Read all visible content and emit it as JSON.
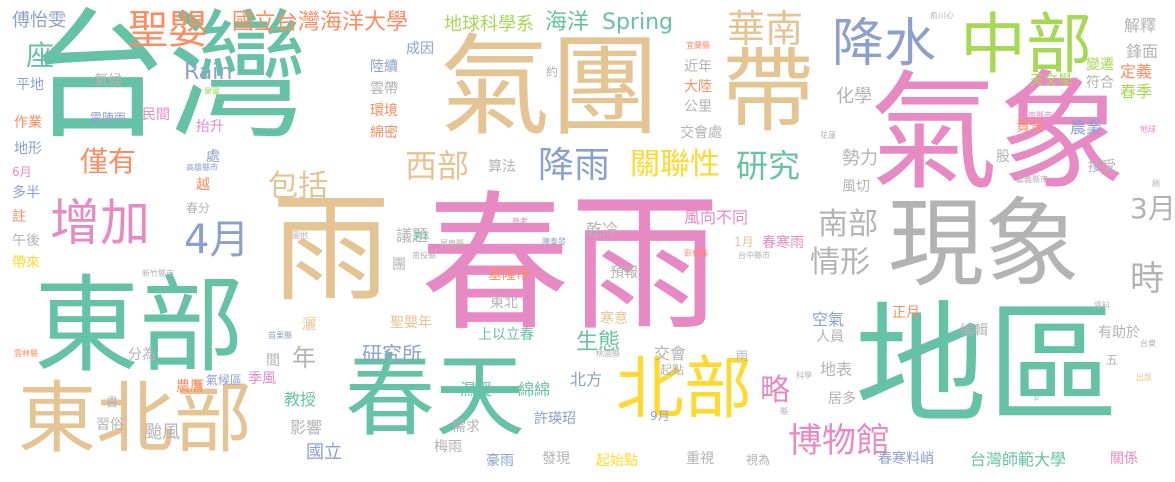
{
  "palette": {
    "green": "#66c2a5",
    "pink": "#e78ac3",
    "tan": "#e5c494",
    "blue": "#8da0cb",
    "gray": "#b3b3b3",
    "orange": "#fc8d62",
    "yellow": "#ffd92f",
    "lime": "#a6d854"
  },
  "words": [
    "台灣",
    "春雨",
    "氣團",
    "氣象",
    "地區",
    "東部",
    "雨",
    "現象",
    "春天",
    "中部",
    "東北部",
    "帶",
    "降水",
    "北部",
    "增加",
    "聖嬰",
    "華南",
    "4月",
    "博物館",
    "降雨",
    "關聯性",
    "研究",
    "情形",
    "南部",
    "3月",
    "時",
    "西部",
    "包括",
    "座",
    "僅有",
    "Rain",
    "Spring",
    "國立台灣海洋大學",
    "地球科學系",
    "海洋",
    "傅怡雯",
    "略",
    "年",
    "研究所",
    "生態",
    "天文學",
    "鋒面",
    "解釋",
    "定義",
    "春季",
    "變遷",
    "符合",
    "化學",
    "責任",
    "勢力",
    "風切",
    "農業",
    "股",
    "接受",
    "風向不同",
    "乾冷",
    "預報",
    "寒意",
    "空氣",
    "人員",
    "有助於",
    "正月",
    "編輯",
    "地表",
    "居多",
    "台灣師範大學",
    "春寒料峭",
    "關係",
    "發現",
    "重視",
    "視為",
    "起始點",
    "豪雨",
    "需求",
    "梅雨",
    "濕暖",
    "綿綿",
    "北方",
    "交會",
    "教授",
    "影響",
    "國立",
    "許瑛玿",
    "農曆",
    "颱風",
    "習俗",
    "氣候區",
    "季風",
    "聖嬰年",
    "上以立春",
    "東北",
    "基隆市",
    "議題",
    "團",
    "灑",
    "間",
    "分為",
    "平地",
    "氣候",
    "作業",
    "雷陣雨",
    "民間",
    "抬升",
    "地形",
    "多半",
    "註",
    "午後",
    "帶來",
    "春分",
    "處",
    "越",
    "高雄縣市",
    "陸續",
    "成因",
    "雲帶",
    "環境",
    "綿密",
    "算法",
    "交會處",
    "近年",
    "大陸",
    "公里",
    "約",
    "果實",
    "宜蘭縣",
    "俞川心",
    "台南縣市",
    "花蓮",
    "嘉義縣市",
    "地球",
    "刷",
    "1月",
    "春寒雨",
    "台中縣市",
    "彰化縣",
    "屏東縣",
    "南投縣",
    "陳泰發",
    "第五",
    "參考",
    "圖地",
    "新竹縣市",
    "苗栗縣",
    "桃園縣",
    "起點",
    "雲林縣",
    "書",
    "科學",
    "縣",
    "出版",
    "台東",
    "資料",
    "五",
    "p",
    "雨",
    "6月",
    "9月"
  ]
}
